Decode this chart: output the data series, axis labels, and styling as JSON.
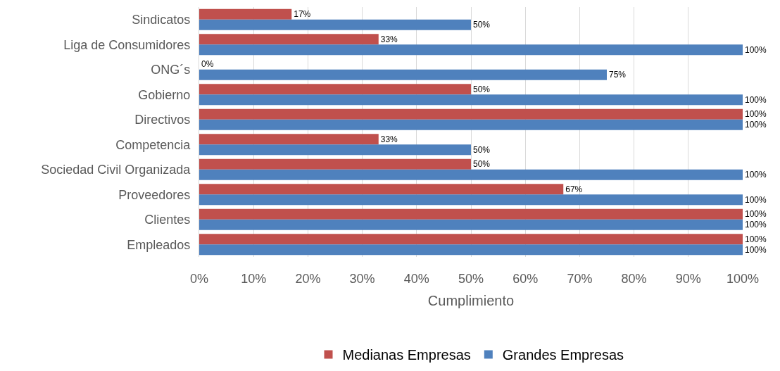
{
  "chart_data": {
    "type": "bar",
    "orientation": "horizontal",
    "categories": [
      "Sindicatos",
      "Liga de Consumidores",
      "ONG´s",
      "Gobierno",
      "Directivos",
      "Competencia",
      "Sociedad Civil Organizada",
      "Proveedores",
      "Clientes",
      "Empleados"
    ],
    "series": [
      {
        "name": "Medianas Empresas",
        "color": "#c0504d",
        "values": [
          17,
          33,
          0,
          50,
          100,
          33,
          50,
          67,
          100,
          100
        ],
        "value_labels": [
          "17%",
          "33%",
          "0%",
          "50%",
          "100%",
          "33%",
          "50%",
          "67%",
          "100%",
          "100%"
        ]
      },
      {
        "name": "Grandes Empresas",
        "color": "#4f81bd",
        "values": [
          50,
          100,
          75,
          100,
          100,
          50,
          100,
          100,
          100,
          100
        ],
        "value_labels": [
          "50%",
          "100%",
          "75%",
          "100%",
          "100%",
          "50%",
          "100%",
          "100%",
          "100%",
          "100%"
        ]
      }
    ],
    "xlabel": "Cumplimiento",
    "xlim": [
      0,
      100
    ],
    "xticks": [
      {
        "value": 0,
        "label": "0%"
      },
      {
        "value": 10,
        "label": "10%"
      },
      {
        "value": 20,
        "label": "20%"
      },
      {
        "value": 30,
        "label": "30%"
      },
      {
        "value": 40,
        "label": "40%"
      },
      {
        "value": 50,
        "label": "50%"
      },
      {
        "value": 60,
        "label": "60%"
      },
      {
        "value": 70,
        "label": "70%"
      },
      {
        "value": 80,
        "label": "80%"
      },
      {
        "value": 90,
        "label": "90%"
      },
      {
        "value": 100,
        "label": "100%"
      }
    ],
    "grid": "x",
    "legend": "bottom"
  }
}
